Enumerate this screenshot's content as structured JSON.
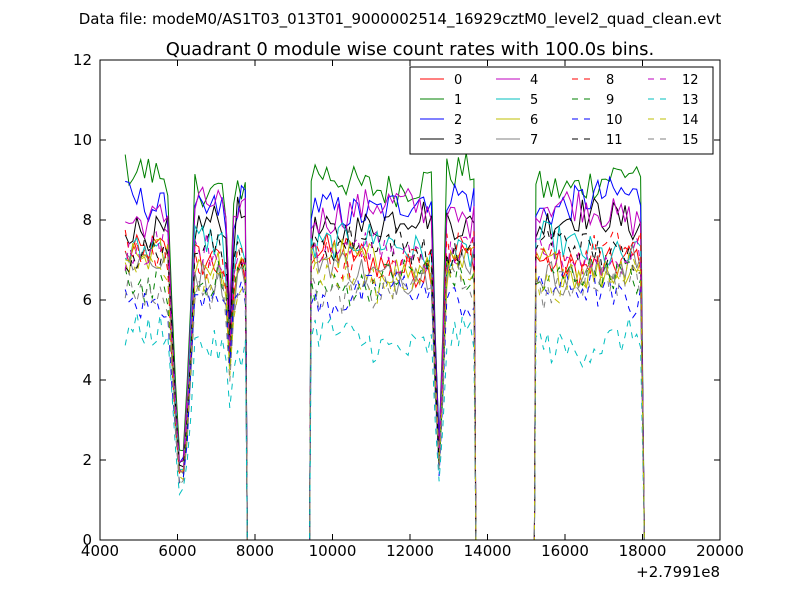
{
  "chart_data": {
    "type": "line",
    "suptitle": "Data file: modeM0/AS1T03_013T01_9000002514_16929cztM0_level2_quad_clean.evt",
    "title": "Quadrant 0 module wise count rates with 100.0s bins.",
    "xlabel": "",
    "ylabel": "",
    "xlim": [
      4000,
      20000
    ],
    "ylim": [
      0,
      12
    ],
    "x_offset_label": "+2.7991e8",
    "xticks": [
      4000,
      6000,
      8000,
      10000,
      12000,
      14000,
      16000,
      18000,
      20000
    ],
    "yticks": [
      0,
      2,
      4,
      6,
      8,
      10,
      12
    ],
    "legend_position": "top-right",
    "segments": [
      {
        "start": 4650,
        "end": 7800,
        "dips": [
          {
            "center": 6100,
            "width": 350,
            "min": 0.2
          },
          {
            "center": 7350,
            "width": 120,
            "min": 0.65
          }
        ],
        "edge_drop_at": 7800
      },
      {
        "start": 9450,
        "end": 13700,
        "dips": [
          {
            "center": 12750,
            "width": 180,
            "min": 0.28
          }
        ],
        "edge_drop_at": 13700
      },
      {
        "start": 15250,
        "end": 18050,
        "dips": [],
        "edge_drop_at": 18050
      }
    ],
    "gaps": [
      [
        7800,
        9450
      ],
      [
        13700,
        15250
      ]
    ],
    "series": [
      {
        "name": "0",
        "color": "#ff0000",
        "dash": "solid",
        "base": 7.0
      },
      {
        "name": "1",
        "color": "#008000",
        "dash": "solid",
        "base": 9.0
      },
      {
        "name": "2",
        "color": "#0000ff",
        "dash": "solid",
        "base": 8.4
      },
      {
        "name": "3",
        "color": "#000000",
        "dash": "solid",
        "base": 7.9
      },
      {
        "name": "4",
        "color": "#bf00bf",
        "dash": "solid",
        "base": 8.2
      },
      {
        "name": "5",
        "color": "#00bfbf",
        "dash": "solid",
        "base": 7.3
      },
      {
        "name": "6",
        "color": "#bfbf00",
        "dash": "solid",
        "base": 6.9
      },
      {
        "name": "7",
        "color": "#808080",
        "dash": "solid",
        "base": 6.8
      },
      {
        "name": "8",
        "color": "#ff0000",
        "dash": "dashed",
        "base": 7.1
      },
      {
        "name": "9",
        "color": "#008000",
        "dash": "dashed",
        "base": 6.5
      },
      {
        "name": "10",
        "color": "#0000ff",
        "dash": "dashed",
        "base": 6.1
      },
      {
        "name": "11",
        "color": "#000000",
        "dash": "dashed",
        "base": 7.3
      },
      {
        "name": "12",
        "color": "#bf00bf",
        "dash": "dashed",
        "base": 7.2
      },
      {
        "name": "13",
        "color": "#00bfbf",
        "dash": "dashed",
        "base": 5.0
      },
      {
        "name": "14",
        "color": "#bfbf00",
        "dash": "dashed",
        "base": 6.6
      },
      {
        "name": "15",
        "color": "#808080",
        "dash": "dashed",
        "base": 6.3
      }
    ]
  }
}
